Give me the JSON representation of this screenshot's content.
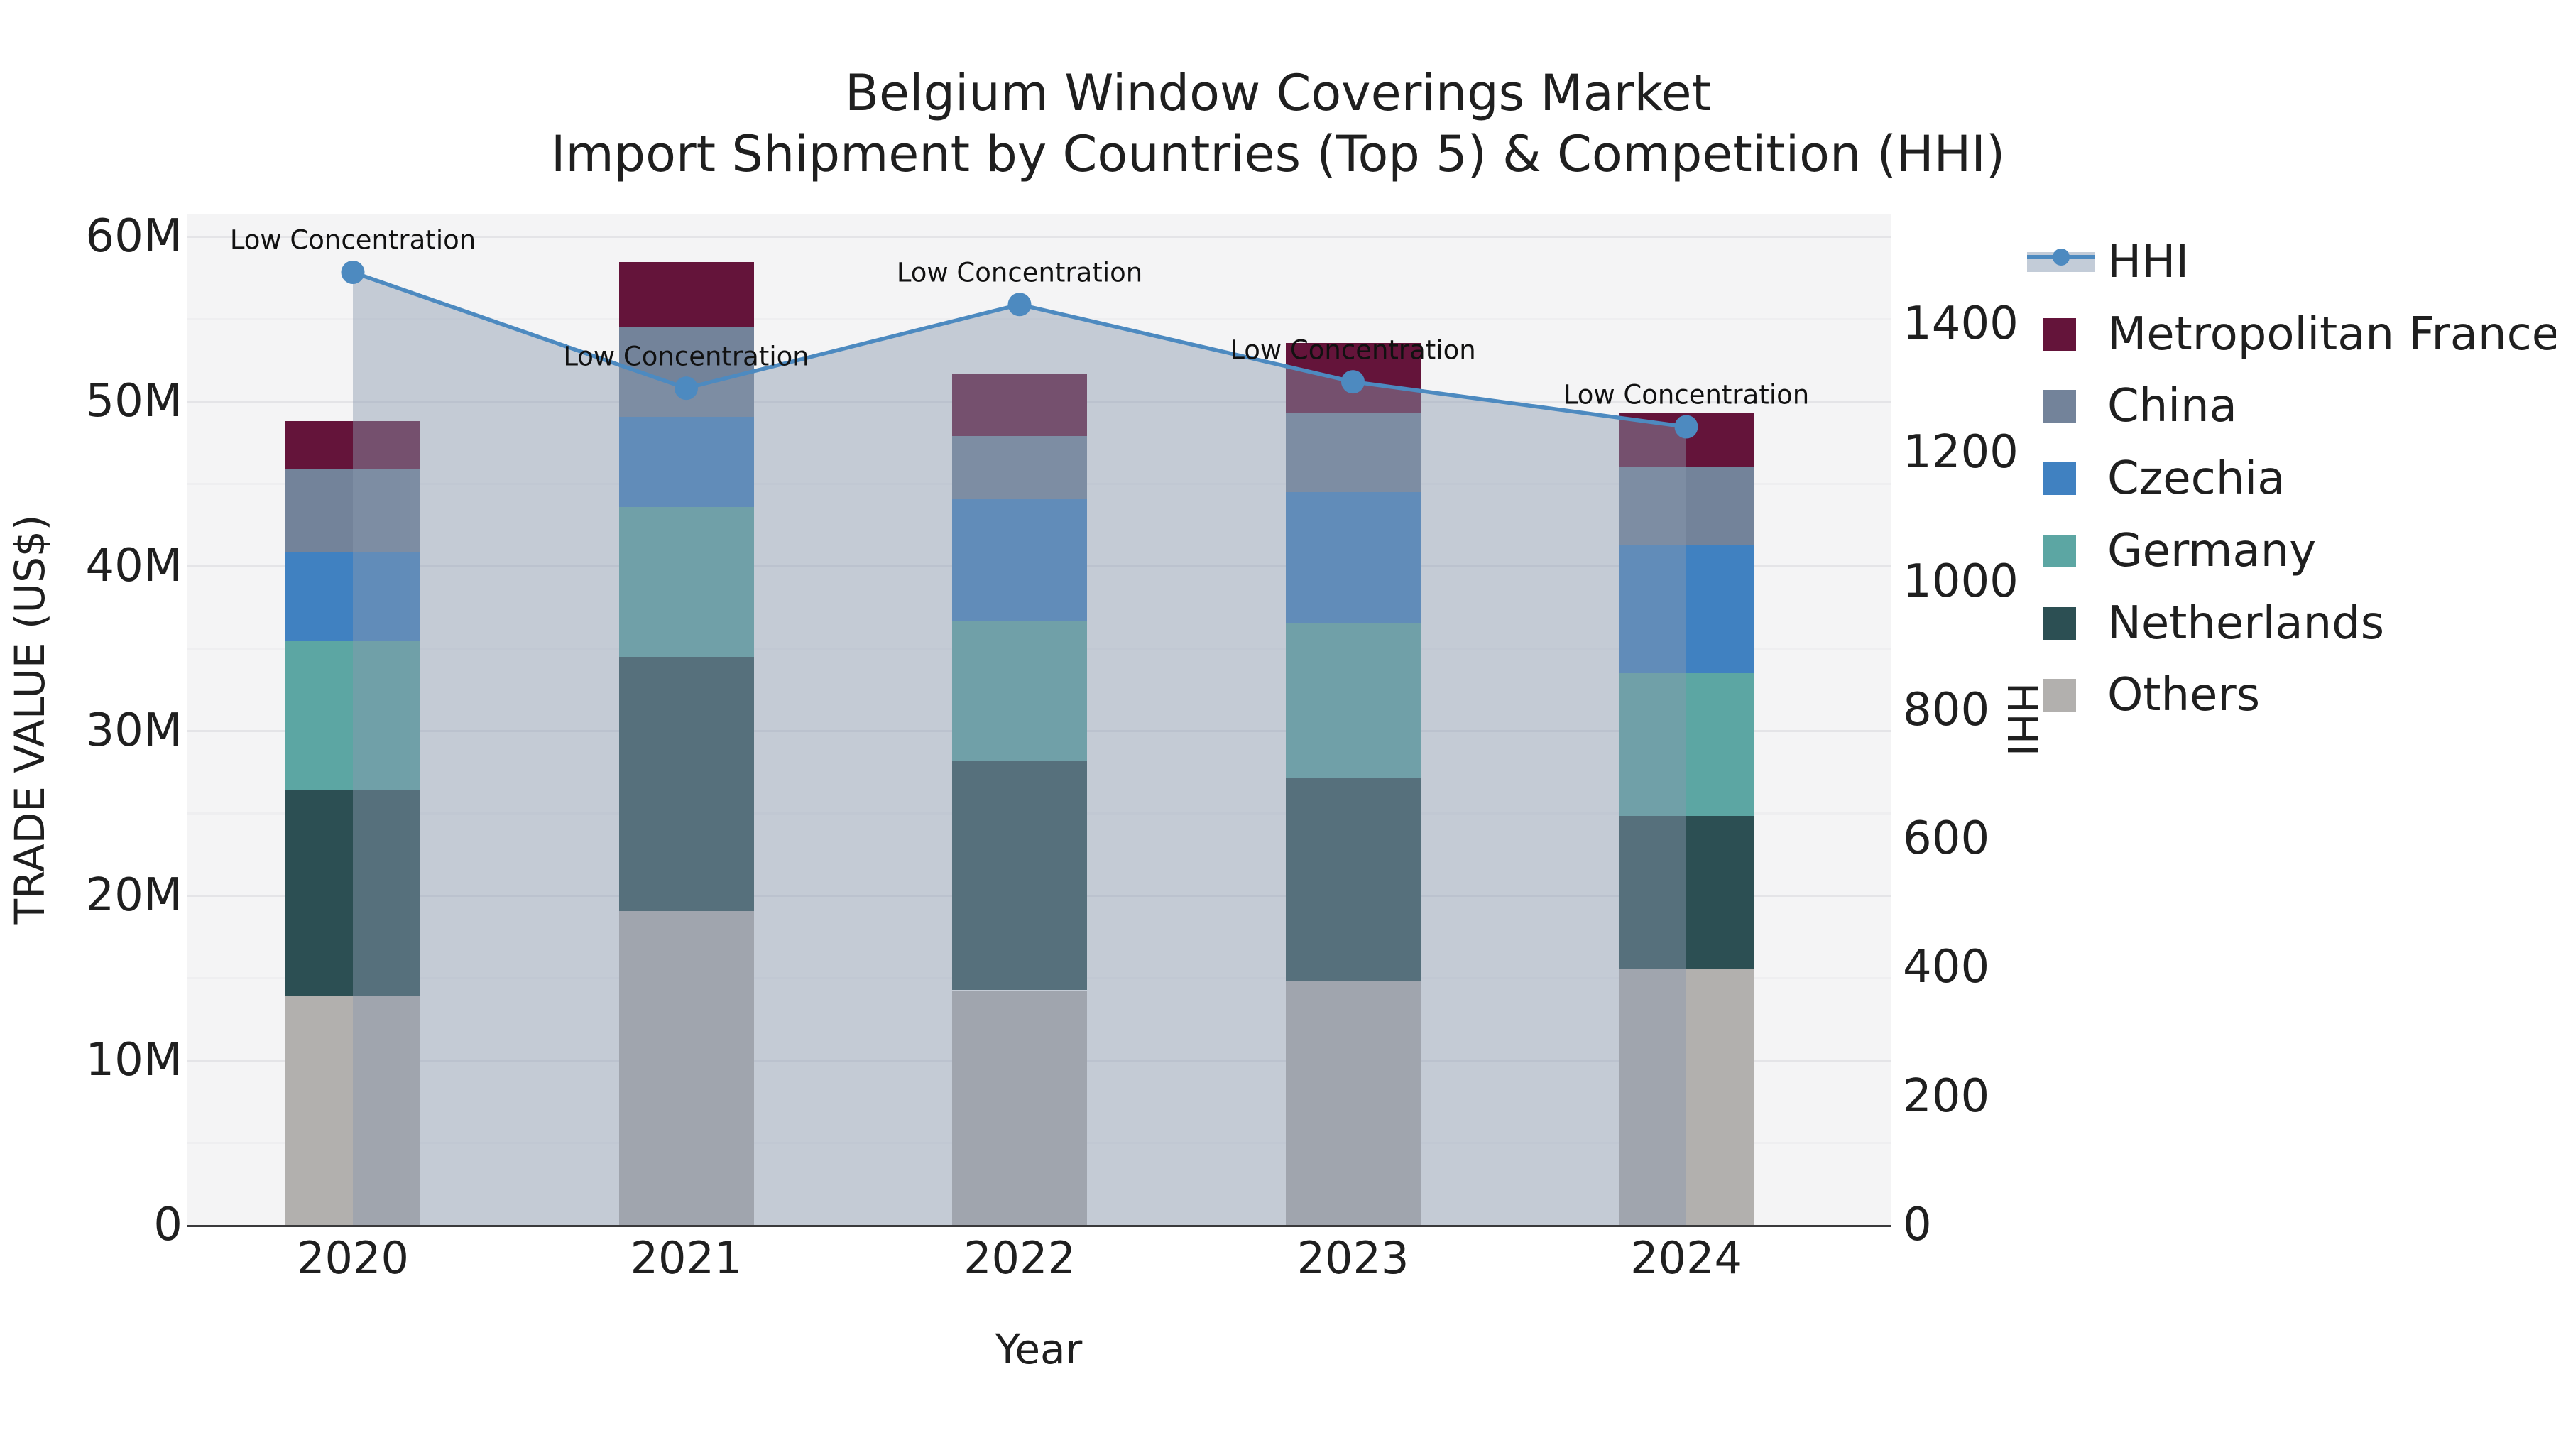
{
  "title": {
    "line1": "Belgium Window Coverings Market",
    "line2": "Import Shipment by Countries (Top 5) & Competition (HHI)"
  },
  "chart_data": {
    "type": "bar+line",
    "title": "Belgium Window Coverings Market Import Shipment by Countries (Top 5) & Competition (HHI)",
    "xlabel": "Year",
    "ylabel_left": "TRADE VALUE (US$)",
    "ylabel_right": "HHI",
    "categories": [
      "2020",
      "2021",
      "2022",
      "2023",
      "2024"
    ],
    "stacked_series_top_to_bottom": [
      {
        "name": "Metropolitan France",
        "color": "#64143a",
        "values_musd": [
          2.9,
          3.9,
          3.75,
          4.25,
          3.3
        ]
      },
      {
        "name": "China",
        "color": "#73839a",
        "values_musd": [
          5.05,
          5.5,
          3.85,
          4.8,
          4.7
        ]
      },
      {
        "name": "Czechia",
        "color": "#4081c1",
        "values_musd": [
          5.4,
          5.45,
          7.4,
          8.0,
          7.8
        ]
      },
      {
        "name": "Germany",
        "color": "#5ca6a3",
        "values_musd": [
          9.0,
          9.1,
          8.45,
          9.4,
          8.65
        ]
      },
      {
        "name": "Netherlands",
        "color": "#2c4f53",
        "values_musd": [
          12.55,
          15.45,
          13.95,
          12.25,
          9.3
        ]
      },
      {
        "name": "Others",
        "color": "#b2b0ae",
        "values_musd": [
          13.9,
          19.05,
          14.25,
          14.85,
          15.55
        ]
      }
    ],
    "line_series": {
      "name": "HHI",
      "color": "#4d8ac0",
      "area_fill_color": "#8a98af",
      "area_fill_opacity": 0.45,
      "values": [
        1480,
        1300,
        1430,
        1310,
        1240
      ],
      "annotations": [
        "Low Concentration",
        "Low Concentration",
        "Low Concentration",
        "Low Concentration",
        "Low Concentration"
      ]
    },
    "axes": {
      "left_tick_labels": [
        "0",
        "10M",
        "20M",
        "30M",
        "40M",
        "50M",
        "60M"
      ],
      "left_tick_values_musd": [
        0,
        10,
        20,
        30,
        40,
        50,
        60
      ],
      "left_ylim_musd": [
        0,
        61.4
      ],
      "right_tick_labels": [
        "0",
        "200",
        "400",
        "600",
        "800",
        "1000",
        "1200",
        "1400"
      ],
      "right_tick_values": [
        0,
        200,
        400,
        600,
        800,
        1000,
        1200,
        1400
      ],
      "right_ylim": [
        0,
        1571
      ],
      "grid": "horizontal-major-and-minor"
    },
    "legend_position": "right"
  },
  "legend": {
    "items": [
      {
        "label": "HHI",
        "type": "line",
        "color": "#4d8ac0",
        "band_color": "#c3ccd8"
      },
      {
        "label": "Metropolitan France",
        "type": "square",
        "color": "#64143a"
      },
      {
        "label": "China",
        "type": "square",
        "color": "#73839a"
      },
      {
        "label": "Czechia",
        "type": "square",
        "color": "#4081c1"
      },
      {
        "label": "Germany",
        "type": "square",
        "color": "#5ca6a3"
      },
      {
        "label": "Netherlands",
        "type": "square",
        "color": "#2c4f53"
      },
      {
        "label": "Others",
        "type": "square",
        "color": "#b2b0ae"
      }
    ]
  },
  "colors": {
    "plot_background": "#f4f4f5",
    "figure_background": "#ffffff",
    "axis_line": "#3a3a3c",
    "grid_major": "#e4e4e7",
    "grid_minor": "#eeeef0",
    "text": "#1f1f1f",
    "annotation_text": "#111111"
  }
}
